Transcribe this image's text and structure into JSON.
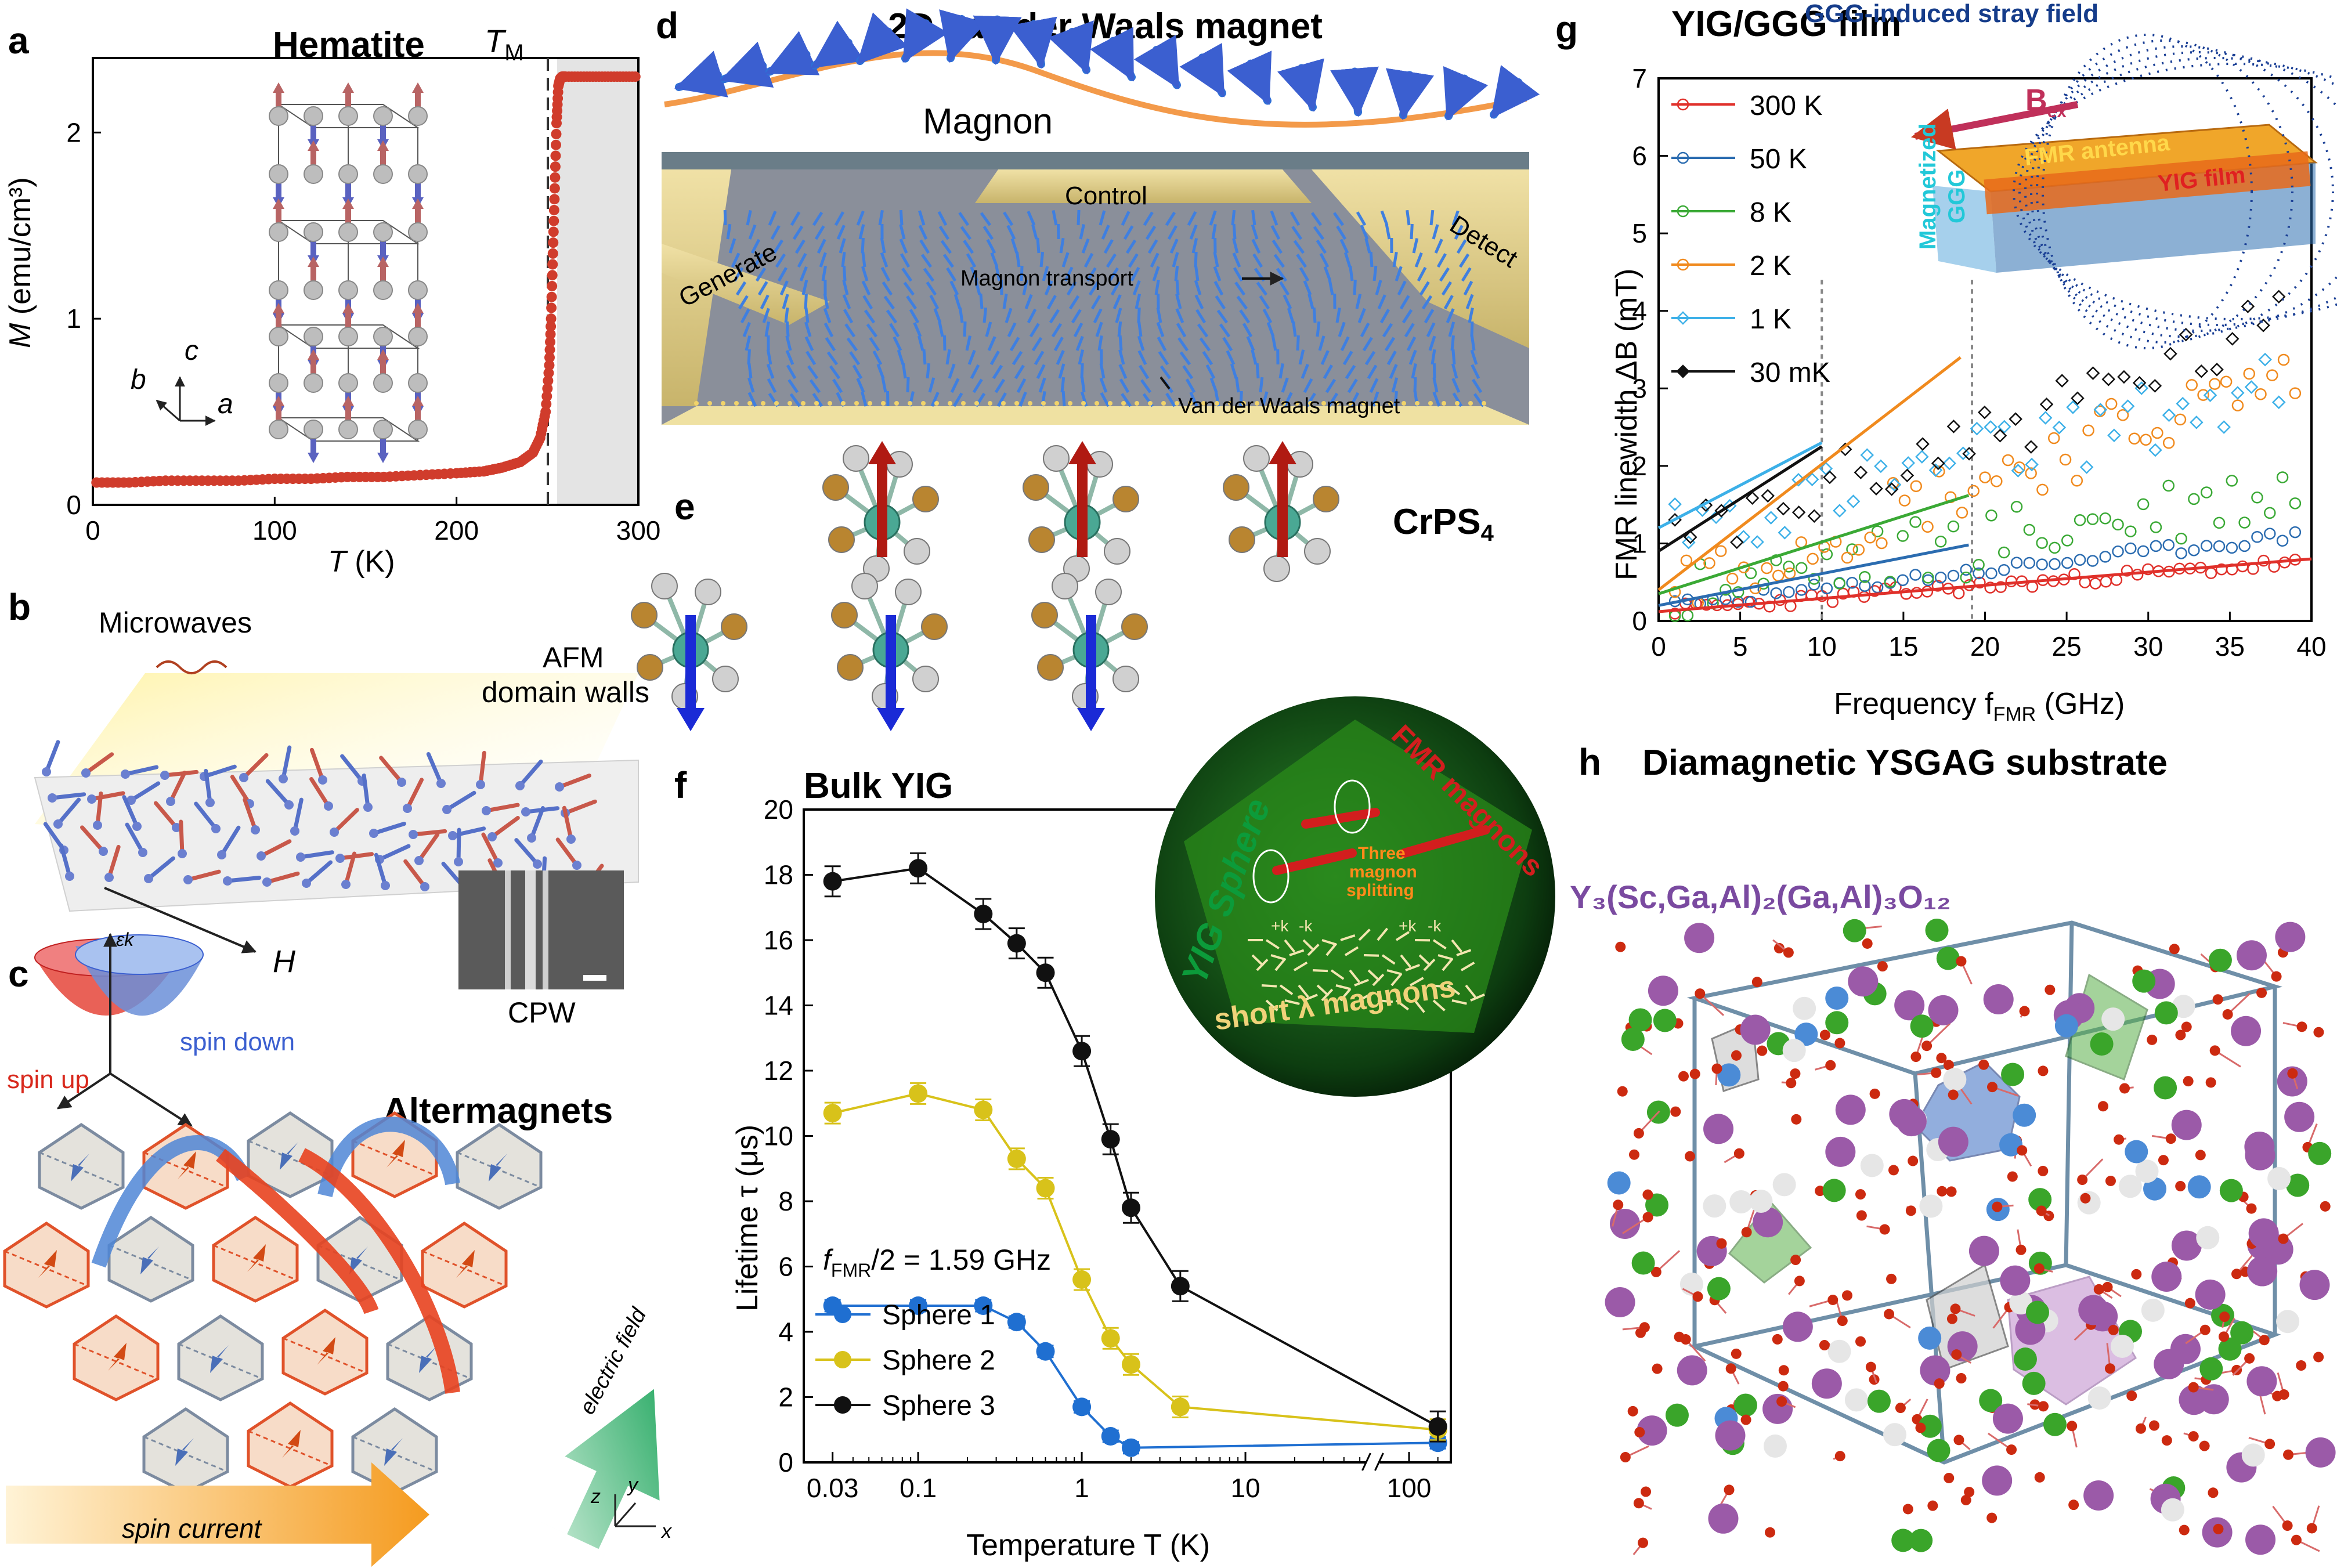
{
  "panel_labels": {
    "a": "a",
    "b": "b",
    "c": "c",
    "d": "d",
    "e": "e",
    "f": "f",
    "g": "g",
    "h": "h"
  },
  "panel_a": {
    "title": "Hematite",
    "tm_label": "T",
    "tm_sub": "M",
    "xlabel_var": "T",
    "xlabel_unit": " (K)",
    "ylabel_var": "M",
    "ylabel_unit": " (emu/cm³)",
    "axis_c": "c",
    "axis_b": "b",
    "axis_a": "a"
  },
  "panel_b": {
    "microwaves": "Microwaves",
    "afm_line1": "AFM",
    "afm_line2": "domain walls",
    "h_label": "H",
    "cpw": "CPW"
  },
  "panel_c": {
    "title": "Altermagnets",
    "spin_up": "spin up",
    "spin_down": "spin down",
    "epsilon": "εk",
    "electric_field": "electric field",
    "spin_current": "spin current",
    "ax_z": "z",
    "ax_y": "y",
    "ax_x": "x"
  },
  "panel_d": {
    "title": "2D van der Waals magnet",
    "magnon": "Magnon",
    "control": "Control",
    "generate": "Generate",
    "detect": "Detect",
    "transport": "Magnon transport",
    "vdw": "Van der Waals magnet"
  },
  "panel_e": {
    "material": "CrPS",
    "material_sub": "4"
  },
  "panel_f": {
    "title": "Bulk YIG",
    "annotation": "/2 = 1.59 GHz",
    "annot_var": "f",
    "annot_sub": "FMR",
    "sphere_text": "YIG Sphere",
    "fmr_text": "FMR magnons",
    "three_magnon_1": "Three",
    "three_magnon_2": "magnon",
    "three_magnon_3": "splitting",
    "short_lambda": "short λ magnons",
    "pk": "+k",
    "mk": "-k",
    "xlabel": "Temperature T (K)",
    "ylabel": "Lifetime τ (μs)"
  },
  "panel_g": {
    "title": "YIG/GGG film",
    "stray": "GGG-induced stray field",
    "bex": "B",
    "bex_sub": "ex",
    "antenna": "FMR antenna",
    "film": "YIG film",
    "ggg1": "Magnetized",
    "ggg2": "GGG",
    "xlabel": "Frequency f",
    "xlabel_sub": "FMR",
    "xlabel_unit": " (GHz)",
    "ylabel": "FMR linewidth ΔB (mT)"
  },
  "panel_h": {
    "title": "Diamagnetic YSGAG  substrate",
    "formula": "Y₃(Sc,Ga,Al)₂(Ga,Al)₃O₁₂"
  },
  "colors": {
    "hematite": "#d03c2c",
    "s1": "#1f6fd1",
    "s2": "#d8c21a",
    "s3": "#111111",
    "g300K": "#e0302a",
    "g50K": "#2b6cb0",
    "g8K": "#3aa935",
    "g2K": "#f08a1e",
    "g1K": "#3cb0e8",
    "g30mK": "#111111"
  },
  "chart_data": [
    {
      "id": "a",
      "type": "scatter",
      "title": "Hematite",
      "xlabel": "T (K)",
      "ylabel": "M (emu/cm³)",
      "xlim": [
        0,
        300
      ],
      "ylim": [
        0,
        2.4
      ],
      "xticks": [
        0,
        100,
        200,
        300
      ],
      "yticks": [
        0,
        1,
        2
      ],
      "vline": {
        "x": 255,
        "label": "T_M"
      },
      "shaded_region": [
        255,
        300
      ],
      "series": [
        {
          "x": [
            2,
            20,
            40,
            60,
            80,
            100,
            120,
            140,
            160,
            180,
            200,
            215,
            225,
            235,
            242,
            246,
            249,
            251,
            252,
            253,
            254,
            255,
            256,
            257,
            258,
            260,
            270,
            280,
            290,
            300
          ],
          "values": [
            0.12,
            0.12,
            0.13,
            0.13,
            0.13,
            0.14,
            0.14,
            0.15,
            0.15,
            0.16,
            0.17,
            0.18,
            0.2,
            0.23,
            0.28,
            0.36,
            0.5,
            0.75,
            1.0,
            1.35,
            1.7,
            2.05,
            2.25,
            2.29,
            2.3,
            2.3,
            2.3,
            2.3,
            2.3,
            2.3
          ]
        }
      ]
    },
    {
      "id": "f",
      "type": "line",
      "title": "Bulk YIG",
      "xlabel": "Temperature T (K)",
      "ylabel": "Lifetime τ (μs)",
      "xscale": "log",
      "xlim": [
        0.02,
        180
      ],
      "ylim": [
        0,
        20
      ],
      "xticks": [
        0.03,
        0.1,
        1,
        10,
        100
      ],
      "xtick_labels": [
        "0.03",
        "0.1",
        "1",
        "10",
        "100"
      ],
      "yticks": [
        0,
        2,
        4,
        6,
        8,
        10,
        12,
        14,
        16,
        18,
        20
      ],
      "axis_break_at": 60,
      "series": [
        {
          "name": "Sphere 1",
          "x": [
            0.03,
            0.1,
            0.25,
            0.4,
            0.6,
            1.0,
            1.5,
            2.0,
            150
          ],
          "values": [
            4.8,
            4.8,
            4.8,
            4.3,
            3.4,
            1.7,
            0.8,
            0.45,
            0.6
          ]
        },
        {
          "name": "Sphere 2",
          "x": [
            0.03,
            0.1,
            0.25,
            0.4,
            0.6,
            1.0,
            1.5,
            2.0,
            4.0,
            150
          ],
          "values": [
            10.7,
            11.3,
            10.8,
            9.3,
            8.4,
            5.6,
            3.8,
            3.0,
            1.7,
            1.0
          ]
        },
        {
          "name": "Sphere 3",
          "x": [
            0.03,
            0.1,
            0.25,
            0.4,
            0.6,
            1.0,
            1.5,
            2.0,
            4.0,
            150
          ],
          "values": [
            17.8,
            18.2,
            16.8,
            15.9,
            15.0,
            12.6,
            9.9,
            7.8,
            5.4,
            1.1
          ]
        }
      ]
    },
    {
      "id": "g",
      "type": "scatter",
      "title": "YIG/GGG film",
      "xlabel": "Frequency f_FMR (GHz)",
      "ylabel": "FMR linewidth ΔB (mT)",
      "xlim": [
        0,
        40
      ],
      "ylim": [
        0,
        7
      ],
      "xticks": [
        0,
        5,
        10,
        15,
        20,
        25,
        30,
        35,
        40
      ],
      "yticks": [
        0,
        1,
        2,
        3,
        4,
        5,
        6,
        7
      ],
      "vlines": [
        10,
        19.2
      ],
      "series": [
        {
          "name": "300 K",
          "fit": [
            [
              0,
              0.12
            ],
            [
              40,
              0.8
            ]
          ]
        },
        {
          "name": "50 K",
          "fit": [
            [
              0,
              0.2
            ],
            [
              19,
              0.98
            ]
          ]
        },
        {
          "name": "8 K",
          "fit": [
            [
              0,
              0.35
            ],
            [
              19,
              1.62
            ]
          ]
        },
        {
          "name": "2 K",
          "fit": [
            [
              0,
              0.4
            ],
            [
              18.5,
              3.4
            ]
          ]
        },
        {
          "name": "1 K",
          "fit": [
            [
              0,
              1.2
            ],
            [
              10,
              2.3
            ]
          ]
        },
        {
          "name": "30 mK",
          "fit": [
            [
              0,
              0.9
            ],
            [
              10,
              2.25
            ]
          ]
        }
      ]
    }
  ]
}
